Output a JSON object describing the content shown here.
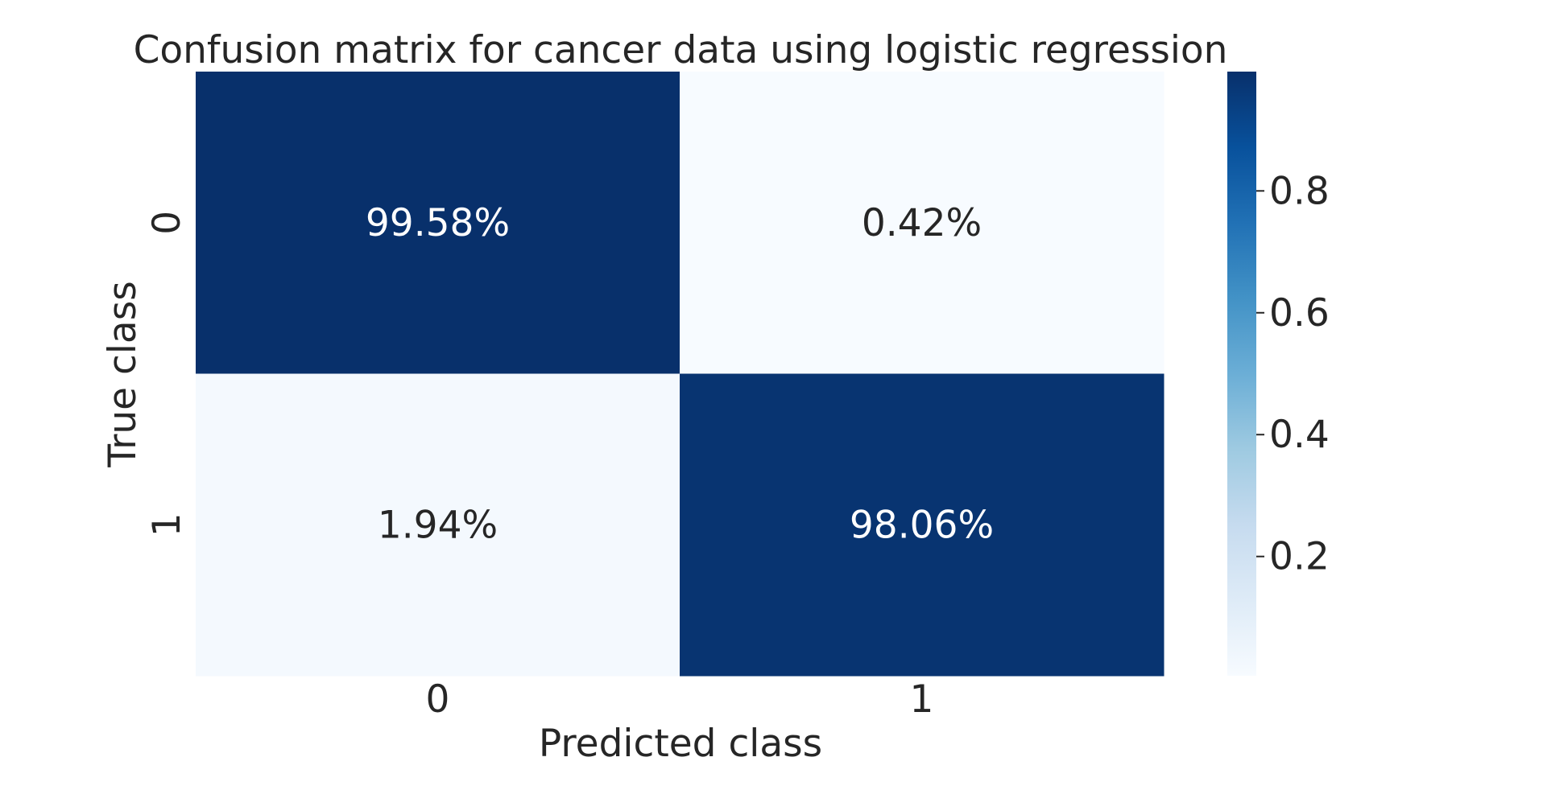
{
  "chart_data": {
    "type": "heatmap",
    "title": "Confusion matrix for cancer data using logistic regression",
    "xlabel": "Predicted class",
    "ylabel": "True class",
    "x_categories": [
      "0",
      "1"
    ],
    "y_categories": [
      "0",
      "1"
    ],
    "values": [
      [
        0.9958,
        0.0042
      ],
      [
        0.0194,
        0.9806
      ]
    ],
    "annotations": [
      [
        "99.58%",
        "0.42%"
      ],
      [
        "1.94%",
        "98.06%"
      ]
    ],
    "colormap": "Blues",
    "colormap_stops": [
      "#f7fbff",
      "#deebf7",
      "#c6dbef",
      "#9ecae1",
      "#6baed6",
      "#4292c6",
      "#2171b5",
      "#08519c",
      "#08306b"
    ],
    "annotation_colors": {
      "dark_cell": "#ffffff",
      "light_cell": "#262626"
    },
    "colorbar": {
      "range": [
        0.0042,
        0.9958
      ],
      "ticks": [
        0.2,
        0.4,
        0.6,
        0.8
      ],
      "tick_labels": [
        "0.2",
        "0.4",
        "0.6",
        "0.8"
      ]
    },
    "grid": false,
    "legend": "colorbar-right"
  }
}
